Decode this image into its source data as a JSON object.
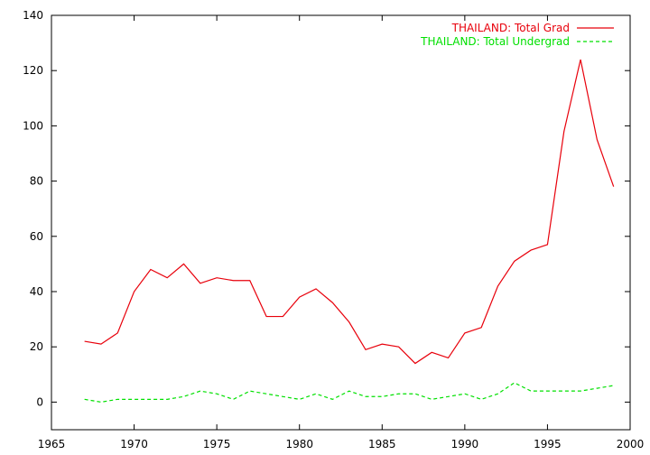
{
  "chart_data": {
    "type": "line",
    "title": "",
    "xlabel": "",
    "ylabel": "",
    "xlim": [
      1965,
      2000
    ],
    "ylim": [
      -10,
      140
    ],
    "xticks": [
      1965,
      1970,
      1975,
      1980,
      1985,
      1990,
      1995,
      2000
    ],
    "yticks": [
      0,
      20,
      40,
      60,
      80,
      100,
      120,
      140
    ],
    "grid": false,
    "legend_position": "top-right",
    "x": [
      1967,
      1968,
      1969,
      1970,
      1971,
      1972,
      1973,
      1974,
      1975,
      1976,
      1977,
      1978,
      1979,
      1980,
      1981,
      1982,
      1983,
      1984,
      1985,
      1986,
      1987,
      1988,
      1989,
      1990,
      1991,
      1992,
      1993,
      1994,
      1995,
      1996,
      1997,
      1998,
      1999
    ],
    "series": [
      {
        "name": "THAILAND: Total Grad",
        "color": "#e8000b",
        "dash": "solid",
        "values": [
          22,
          21,
          25,
          40,
          48,
          45,
          50,
          43,
          45,
          44,
          44,
          31,
          31,
          38,
          41,
          36,
          29,
          19,
          21,
          20,
          14,
          18,
          16,
          25,
          27,
          42,
          51,
          55,
          57,
          98,
          124,
          95,
          78
        ]
      },
      {
        "name": "THAILAND: Total Undergrad",
        "color": "#00e000",
        "dash": "dashed",
        "values": [
          1,
          0,
          1,
          1,
          1,
          1,
          2,
          4,
          3,
          1,
          4,
          3,
          2,
          1,
          3,
          1,
          4,
          2,
          2,
          3,
          3,
          1,
          2,
          3,
          1,
          3,
          7,
          4,
          4,
          4,
          4,
          5,
          6
        ]
      }
    ]
  }
}
